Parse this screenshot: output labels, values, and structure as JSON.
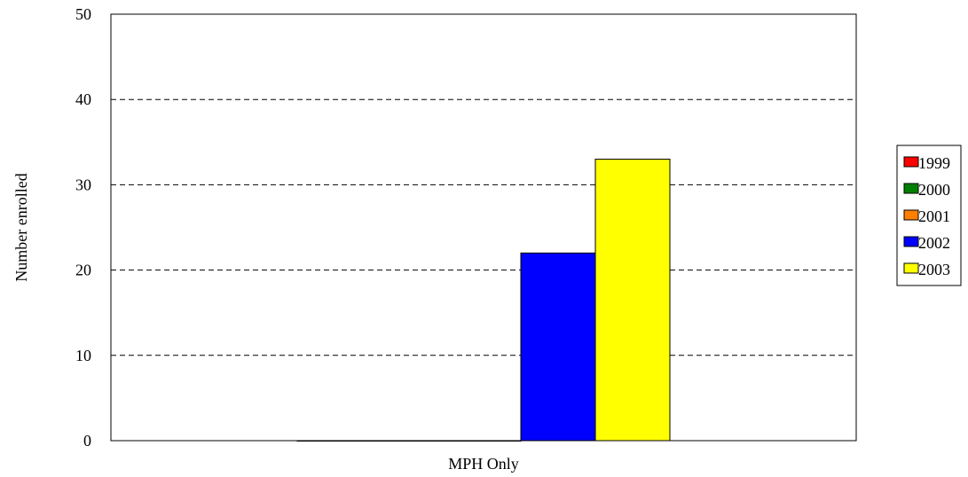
{
  "chart_data": {
    "type": "bar",
    "categories": [
      "MPH Only"
    ],
    "series": [
      {
        "name": "1999",
        "values": [
          0
        ],
        "color": "#ff0000"
      },
      {
        "name": "2000",
        "values": [
          0
        ],
        "color": "#008000"
      },
      {
        "name": "2001",
        "values": [
          0
        ],
        "color": "#ff8000"
      },
      {
        "name": "2002",
        "values": [
          22
        ],
        "color": "#0000ff"
      },
      {
        "name": "2003",
        "values": [
          33
        ],
        "color": "#ffff00"
      }
    ],
    "title": "",
    "xlabel": "",
    "ylabel": "Number enrolled",
    "ylim": [
      0,
      50
    ],
    "yticks": [
      0,
      10,
      20,
      30,
      40,
      50
    ],
    "grid": "horizontal dashed",
    "legend_position": "right"
  }
}
